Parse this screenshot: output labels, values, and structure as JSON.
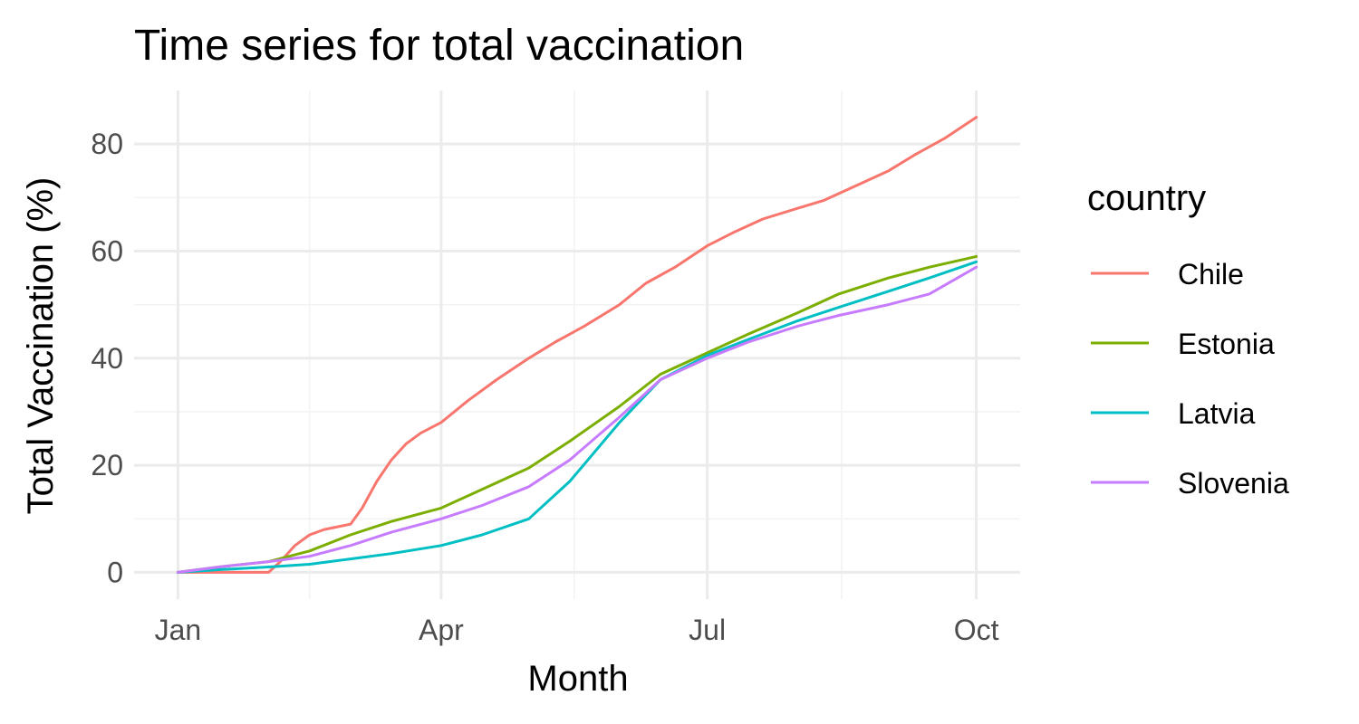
{
  "chart_data": {
    "type": "line",
    "title": "Time series for total vaccination",
    "xlabel": "Month",
    "ylabel": "Total Vaccination (%)",
    "x_axis": {
      "type": "date",
      "range": [
        "2021-01-01",
        "2021-10-01"
      ],
      "ticks": [
        {
          "date": "2021-01-01",
          "label": "Jan"
        },
        {
          "date": "2021-04-01",
          "label": "Apr"
        },
        {
          "date": "2021-07-01",
          "label": "Jul"
        },
        {
          "date": "2021-10-01",
          "label": "Oct"
        }
      ]
    },
    "y_axis": {
      "ylim": [
        -5,
        90
      ],
      "ticks": [
        0,
        20,
        40,
        60,
        80
      ]
    },
    "grid": true,
    "legend": {
      "title": "country",
      "position": "right"
    },
    "series": [
      {
        "name": "Chile",
        "color": "#F8766D",
        "x": [
          "2021-01-01",
          "2021-01-10",
          "2021-01-20",
          "2021-02-01",
          "2021-02-05",
          "2021-02-10",
          "2021-02-15",
          "2021-02-20",
          "2021-03-01",
          "2021-03-05",
          "2021-03-10",
          "2021-03-15",
          "2021-03-20",
          "2021-03-25",
          "2021-04-01",
          "2021-04-10",
          "2021-04-20",
          "2021-05-01",
          "2021-05-10",
          "2021-05-20",
          "2021-06-01",
          "2021-06-10",
          "2021-06-20",
          "2021-07-01",
          "2021-07-10",
          "2021-07-20",
          "2021-08-01",
          "2021-08-10",
          "2021-08-20",
          "2021-09-01",
          "2021-09-10",
          "2021-09-20",
          "2021-10-01"
        ],
        "y": [
          0,
          0,
          0,
          0,
          2,
          5,
          7,
          8,
          9,
          12,
          17,
          21,
          24,
          26,
          28,
          32,
          36,
          40,
          43,
          46,
          50,
          54,
          57,
          61,
          63.5,
          66,
          68,
          69.5,
          72,
          75,
          78,
          81,
          85
        ]
      },
      {
        "name": "Estonia",
        "color": "#7CAE00",
        "x": [
          "2021-01-01",
          "2021-01-15",
          "2021-02-01",
          "2021-02-15",
          "2021-03-01",
          "2021-03-15",
          "2021-04-01",
          "2021-04-15",
          "2021-05-01",
          "2021-05-15",
          "2021-06-01",
          "2021-06-15",
          "2021-07-01",
          "2021-07-15",
          "2021-08-01",
          "2021-08-15",
          "2021-09-01",
          "2021-09-15",
          "2021-10-01"
        ],
        "y": [
          0,
          1,
          2,
          4,
          7,
          9.5,
          12,
          15.5,
          19.5,
          24.5,
          31,
          37,
          41,
          44.5,
          48.5,
          52,
          55,
          57,
          59
        ]
      },
      {
        "name": "Latvia",
        "color": "#00BFC4",
        "x": [
          "2021-01-01",
          "2021-01-15",
          "2021-02-01",
          "2021-02-15",
          "2021-03-01",
          "2021-03-15",
          "2021-04-01",
          "2021-04-15",
          "2021-05-01",
          "2021-05-15",
          "2021-06-01",
          "2021-06-15",
          "2021-07-01",
          "2021-07-15",
          "2021-08-01",
          "2021-08-15",
          "2021-09-01",
          "2021-09-15",
          "2021-10-01"
        ],
        "y": [
          0,
          0.5,
          1,
          1.5,
          2.5,
          3.5,
          5,
          7,
          10,
          17,
          28,
          36,
          40.5,
          43.5,
          47,
          49.5,
          52.5,
          55,
          58
        ]
      },
      {
        "name": "Slovenia",
        "color": "#C77CFF",
        "x": [
          "2021-01-01",
          "2021-01-15",
          "2021-02-01",
          "2021-02-15",
          "2021-03-01",
          "2021-03-15",
          "2021-04-01",
          "2021-04-15",
          "2021-05-01",
          "2021-05-15",
          "2021-06-01",
          "2021-06-15",
          "2021-07-01",
          "2021-07-15",
          "2021-08-01",
          "2021-08-15",
          "2021-09-01",
          "2021-09-15",
          "2021-10-01"
        ],
        "y": [
          0,
          1,
          2,
          3,
          5,
          7.5,
          10,
          12.5,
          16,
          21,
          29,
          36,
          40,
          43,
          46,
          48,
          50,
          52,
          57
        ]
      }
    ]
  }
}
